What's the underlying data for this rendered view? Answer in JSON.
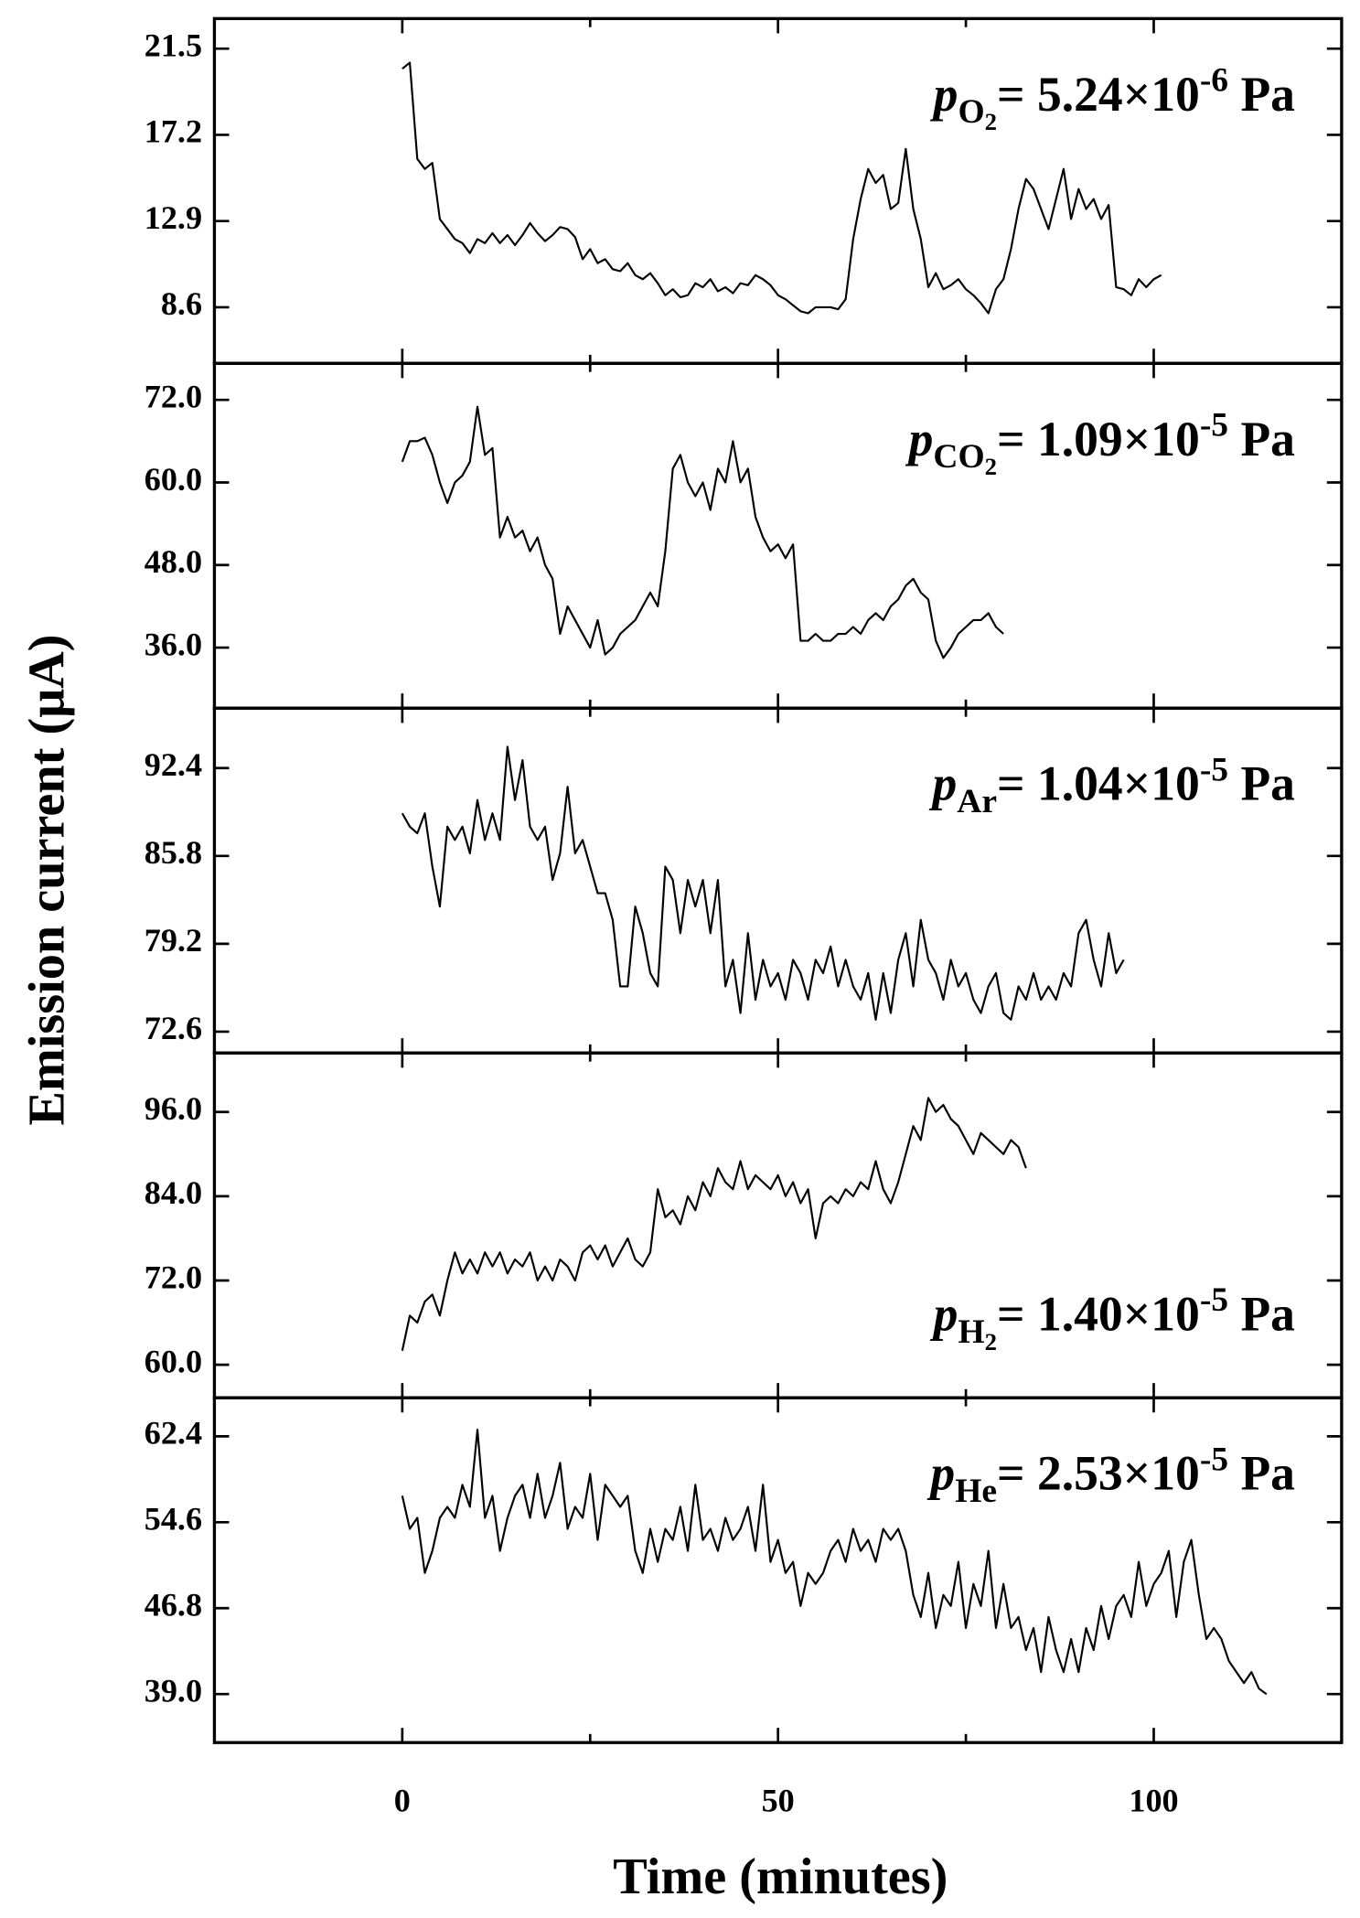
{
  "x_axis": {
    "label": "Time (minutes)",
    "xlim": [
      -25,
      125
    ],
    "xticks": [
      0,
      50,
      100
    ],
    "xminorticks": [
      -25,
      25,
      75,
      125
    ]
  },
  "y_label": "Emission current (μA)",
  "chart_data": [
    {
      "type": "line",
      "color": "#000000",
      "annotation_corner": "top-right",
      "annotation": {
        "symbol": "p",
        "species": "O",
        "species_sub": "2",
        "equals": "= 5.24×10",
        "exponent": "-6",
        "unit": "Pa"
      },
      "ylim": [
        5.8,
        23.0
      ],
      "yticks": [
        8.6,
        12.9,
        17.2,
        21.5
      ],
      "x": [
        0,
        1,
        2,
        3,
        4,
        5,
        6,
        7,
        8,
        9,
        10,
        11,
        12,
        13,
        14,
        15,
        16,
        17,
        18,
        19,
        20,
        21,
        22,
        23,
        24,
        25,
        26,
        27,
        28,
        29,
        30,
        31,
        32,
        33,
        34,
        35,
        36,
        37,
        38,
        39,
        40,
        41,
        42,
        43,
        44,
        45,
        46,
        47,
        48,
        49,
        50,
        51,
        52,
        53,
        54,
        55,
        56,
        57,
        58,
        59,
        60,
        61,
        62,
        63,
        64,
        65,
        66,
        67,
        68,
        69,
        70,
        71,
        72,
        73,
        74,
        75,
        76,
        77,
        78,
        79,
        80,
        81,
        82,
        83,
        84,
        85,
        86,
        87,
        88,
        89,
        90,
        91,
        92,
        93,
        94,
        95,
        96,
        97,
        98,
        99,
        100,
        101
      ],
      "values": [
        20.5,
        20.8,
        16,
        15.5,
        15.8,
        13,
        12.5,
        12,
        11.8,
        11.3,
        12,
        11.8,
        12.3,
        11.8,
        12.2,
        11.7,
        12.2,
        12.8,
        12.3,
        11.9,
        12.2,
        12.6,
        12.5,
        12.1,
        11,
        11.5,
        10.8,
        11,
        10.5,
        10.4,
        10.8,
        10.2,
        10,
        10.3,
        9.8,
        9.2,
        9.5,
        9.1,
        9.2,
        9.8,
        9.6,
        10,
        9.4,
        9.6,
        9.3,
        9.8,
        9.7,
        10.2,
        10,
        9.7,
        9.2,
        9,
        8.7,
        8.4,
        8.3,
        8.6,
        8.6,
        8.6,
        8.5,
        9,
        12,
        14,
        15.5,
        14.8,
        15.2,
        13.5,
        13.8,
        16.5,
        13.5,
        12,
        9.6,
        10.3,
        9.5,
        9.7,
        10,
        9.5,
        9.2,
        8.8,
        8.3,
        9.5,
        10,
        11.5,
        13.5,
        15,
        14.5,
        13.5,
        12.5,
        14,
        15.5,
        13,
        14.5,
        13.5,
        14,
        13,
        13.7,
        9.6,
        9.5,
        9.2,
        10,
        9.6,
        10,
        10.2
      ]
    },
    {
      "type": "line",
      "color": "#000000",
      "annotation_corner": "top-right",
      "annotation": {
        "symbol": "p",
        "species": "CO",
        "species_sub": "2",
        "equals": "= 1.09×10",
        "exponent": "-5",
        "unit": "Pa"
      },
      "ylim": [
        27.2,
        77.3
      ],
      "yticks": [
        {
          "value": 36,
          "label": "36.0"
        },
        {
          "value": 48,
          "label": "48.0"
        },
        {
          "value": 60,
          "label": "60.0"
        },
        {
          "value": 72,
          "label": "72.0"
        }
      ],
      "x": [
        0,
        1,
        2,
        3,
        4,
        5,
        6,
        7,
        8,
        9,
        10,
        11,
        12,
        13,
        14,
        15,
        16,
        17,
        18,
        19,
        20,
        21,
        22,
        23,
        24,
        25,
        26,
        27,
        28,
        29,
        30,
        31,
        32,
        33,
        34,
        35,
        36,
        37,
        38,
        39,
        40,
        41,
        42,
        43,
        44,
        45,
        46,
        47,
        48,
        49,
        50,
        51,
        52,
        53,
        54,
        55,
        56,
        57,
        58,
        59,
        60,
        61,
        62,
        63,
        64,
        65,
        66,
        67,
        68,
        69,
        70,
        71,
        72,
        73,
        74,
        75,
        76,
        77,
        78,
        79,
        80
      ],
      "values": [
        63,
        66,
        66,
        66.5,
        64,
        60,
        57,
        60,
        61,
        63,
        71,
        64,
        65,
        52,
        55,
        52,
        53,
        50,
        52,
        48,
        46,
        38,
        42,
        40,
        38,
        36,
        40,
        35,
        36,
        38,
        39,
        40,
        42,
        44,
        42,
        50,
        62,
        64,
        60,
        58,
        60,
        56,
        62,
        60,
        66,
        60,
        62,
        55,
        52,
        50,
        51,
        49,
        51,
        37,
        37,
        38,
        37,
        37,
        38,
        38,
        39,
        38,
        40,
        41,
        40,
        42,
        43,
        45,
        46,
        44,
        43,
        37,
        34.5,
        36,
        38,
        39,
        40,
        40,
        41,
        39,
        38
      ]
    },
    {
      "type": "line",
      "color": "#000000",
      "annotation_corner": "top-right",
      "annotation": {
        "symbol": "p",
        "species": "Ar",
        "equals": "= 1.04×10",
        "exponent": "-5",
        "unit": "Pa"
      },
      "ylim": [
        71.0,
        96.9
      ],
      "yticks": [
        72.6,
        79.2,
        85.8,
        92.4
      ],
      "x": [
        0,
        1,
        2,
        3,
        4,
        5,
        6,
        7,
        8,
        9,
        10,
        11,
        12,
        13,
        14,
        15,
        16,
        17,
        18,
        19,
        20,
        21,
        22,
        23,
        24,
        25,
        26,
        27,
        28,
        29,
        30,
        31,
        32,
        33,
        34,
        35,
        36,
        37,
        38,
        39,
        40,
        41,
        42,
        43,
        44,
        45,
        46,
        47,
        48,
        49,
        50,
        51,
        52,
        53,
        54,
        55,
        56,
        57,
        58,
        59,
        60,
        61,
        62,
        63,
        64,
        65,
        66,
        67,
        68,
        69,
        70,
        71,
        72,
        73,
        74,
        75,
        76,
        77,
        78,
        79,
        80,
        81,
        82,
        83,
        84,
        85,
        86,
        87,
        88,
        89,
        90,
        91,
        92,
        93,
        94,
        95,
        96
      ],
      "values": [
        89,
        88,
        87.5,
        89,
        85,
        82,
        88,
        87,
        88,
        86,
        90,
        87,
        89,
        87,
        94,
        90,
        93,
        88,
        87,
        88,
        84,
        86,
        91,
        86,
        87,
        85,
        83,
        83,
        81,
        76,
        76,
        82,
        80,
        77,
        76,
        85,
        84,
        80,
        84,
        82,
        84,
        80,
        84,
        76,
        78,
        74,
        80,
        75,
        78,
        76,
        77,
        75,
        78,
        77,
        75,
        78,
        77,
        79,
        76,
        78,
        76,
        75,
        77,
        73.5,
        77,
        74,
        78,
        80,
        76,
        81,
        78,
        77,
        75,
        78,
        76,
        77,
        75,
        74,
        76,
        77,
        74,
        73.5,
        76,
        75,
        77,
        75,
        76,
        75,
        77,
        76,
        80,
        81,
        78,
        76,
        80,
        77,
        78
      ]
    },
    {
      "type": "line",
      "color": "#000000",
      "annotation_corner": "bottom-right",
      "annotation": {
        "symbol": "p",
        "species": "H",
        "species_sub": "2",
        "equals": "= 1.40×10",
        "exponent": "-5",
        "unit": "Pa"
      },
      "ylim": [
        55.3,
        104.4
      ],
      "yticks": [
        {
          "value": 60,
          "label": "60.0"
        },
        {
          "value": 72,
          "label": "72.0"
        },
        {
          "value": 84,
          "label": "84.0"
        },
        {
          "value": 96,
          "label": "96.0"
        }
      ],
      "x": [
        0,
        1,
        2,
        3,
        4,
        5,
        6,
        7,
        8,
        9,
        10,
        11,
        12,
        13,
        14,
        15,
        16,
        17,
        18,
        19,
        20,
        21,
        22,
        23,
        24,
        25,
        26,
        27,
        28,
        29,
        30,
        31,
        32,
        33,
        34,
        35,
        36,
        37,
        38,
        39,
        40,
        41,
        42,
        43,
        44,
        45,
        46,
        47,
        48,
        49,
        50,
        51,
        52,
        53,
        54,
        55,
        56,
        57,
        58,
        59,
        60,
        61,
        62,
        63,
        64,
        65,
        66,
        67,
        68,
        69,
        70,
        71,
        72,
        73,
        74,
        75,
        76,
        77,
        78,
        79,
        80,
        81,
        82,
        83
      ],
      "values": [
        62,
        67,
        66,
        69,
        70,
        67,
        72,
        76,
        73,
        75,
        73,
        76,
        74,
        76,
        73,
        75,
        74,
        76,
        72,
        74,
        72,
        75,
        74,
        72,
        76,
        77,
        75,
        77,
        74,
        76,
        78,
        75,
        74,
        76,
        85,
        81,
        82,
        80,
        84,
        82,
        86,
        84,
        88,
        86,
        85,
        89,
        85,
        87,
        86,
        85,
        87,
        84,
        86,
        83,
        85,
        78,
        83,
        84,
        83,
        85,
        84,
        86,
        85,
        89,
        85,
        83,
        86,
        90,
        94,
        92,
        98,
        96,
        97,
        95,
        94,
        92,
        90,
        93,
        92,
        91,
        90,
        92,
        91,
        88
      ]
    },
    {
      "type": "line",
      "color": "#000000",
      "annotation_corner": "top-right",
      "annotation": {
        "symbol": "p",
        "species": "He",
        "equals": "= 2.53×10",
        "exponent": "-5",
        "unit": "Pa"
      },
      "ylim": [
        34.6,
        65.9
      ],
      "yticks": [
        {
          "value": 39,
          "label": "39.0"
        },
        46.8,
        54.6,
        62.4
      ],
      "x": [
        0,
        1,
        2,
        3,
        4,
        5,
        6,
        7,
        8,
        9,
        10,
        11,
        12,
        13,
        14,
        15,
        16,
        17,
        18,
        19,
        20,
        21,
        22,
        23,
        24,
        25,
        26,
        27,
        28,
        29,
        30,
        31,
        32,
        33,
        34,
        35,
        36,
        37,
        38,
        39,
        40,
        41,
        42,
        43,
        44,
        45,
        46,
        47,
        48,
        49,
        50,
        51,
        52,
        53,
        54,
        55,
        56,
        57,
        58,
        59,
        60,
        61,
        62,
        63,
        64,
        65,
        66,
        67,
        68,
        69,
        70,
        71,
        72,
        73,
        74,
        75,
        76,
        77,
        78,
        79,
        80,
        81,
        82,
        83,
        84,
        85,
        86,
        87,
        88,
        89,
        90,
        91,
        92,
        93,
        94,
        95,
        96,
        97,
        98,
        99,
        100,
        101,
        102,
        103,
        104,
        105,
        106,
        107,
        108,
        109,
        110,
        111,
        112,
        113,
        114,
        115
      ],
      "values": [
        57,
        54,
        55,
        50,
        52,
        55,
        56,
        55,
        58,
        56,
        63,
        55,
        57,
        52,
        55,
        57,
        58,
        55,
        59,
        55,
        57,
        60,
        54,
        56,
        55,
        59,
        53,
        58,
        57,
        56,
        57,
        52,
        50,
        54,
        51,
        54,
        53,
        56,
        52,
        58,
        53,
        54,
        52,
        55,
        53,
        54,
        56,
        52,
        58,
        51,
        53,
        50,
        51,
        47,
        50,
        49,
        50,
        52,
        53,
        51,
        54,
        52,
        53,
        51,
        54,
        53,
        54,
        52,
        48,
        46,
        50,
        45,
        48,
        47,
        51,
        45,
        49,
        47,
        52,
        45,
        49,
        45,
        46,
        43,
        45,
        41,
        46,
        43,
        41,
        44,
        41,
        45,
        43,
        47,
        44,
        47,
        48,
        46,
        51,
        47,
        49,
        50,
        52,
        46,
        51,
        53,
        48,
        44,
        45,
        44,
        42,
        41,
        40,
        41,
        39.5,
        39
      ]
    }
  ]
}
